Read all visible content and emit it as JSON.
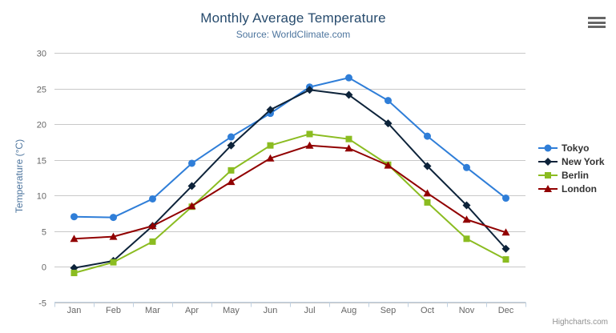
{
  "chart_data": {
    "type": "line",
    "title": "Monthly Average Temperature",
    "subtitle": "Source: WorldClimate.com",
    "categories": [
      "Jan",
      "Feb",
      "Mar",
      "Apr",
      "May",
      "Jun",
      "Jul",
      "Aug",
      "Sep",
      "Oct",
      "Nov",
      "Dec"
    ],
    "xlabel": "",
    "ylabel": "Temperature (°C)",
    "ylim": [
      -5,
      30
    ],
    "ytick_interval": 5,
    "grid": true,
    "legend_position": "right",
    "grid_color": "#c8c8c8",
    "axis_line_color": "#c0d0e0",
    "tick_label_color": "#666666",
    "series": [
      {
        "name": "Tokyo",
        "color": "#2f7ed8",
        "marker": "circle",
        "values": [
          7.0,
          6.9,
          9.5,
          14.5,
          18.2,
          21.5,
          25.2,
          26.5,
          23.3,
          18.3,
          13.9,
          9.6
        ]
      },
      {
        "name": "New York",
        "color": "#0d233a",
        "marker": "diamond",
        "values": [
          -0.2,
          0.8,
          5.7,
          11.3,
          17.0,
          22.0,
          24.8,
          24.1,
          20.1,
          14.1,
          8.6,
          2.5
        ]
      },
      {
        "name": "Berlin",
        "color": "#8bbc21",
        "marker": "square",
        "values": [
          -0.9,
          0.6,
          3.5,
          8.4,
          13.5,
          17.0,
          18.6,
          17.9,
          14.3,
          9.0,
          3.9,
          1.0
        ]
      },
      {
        "name": "London",
        "color": "#910000",
        "marker": "triangle",
        "values": [
          3.9,
          4.2,
          5.7,
          8.5,
          11.9,
          15.2,
          17.0,
          16.6,
          14.2,
          10.3,
          6.6,
          4.8
        ]
      }
    ]
  },
  "credits": {
    "label": "Highcharts.com"
  },
  "context_menu": {
    "icon": "hamburger-icon",
    "title": "Chart context menu"
  }
}
